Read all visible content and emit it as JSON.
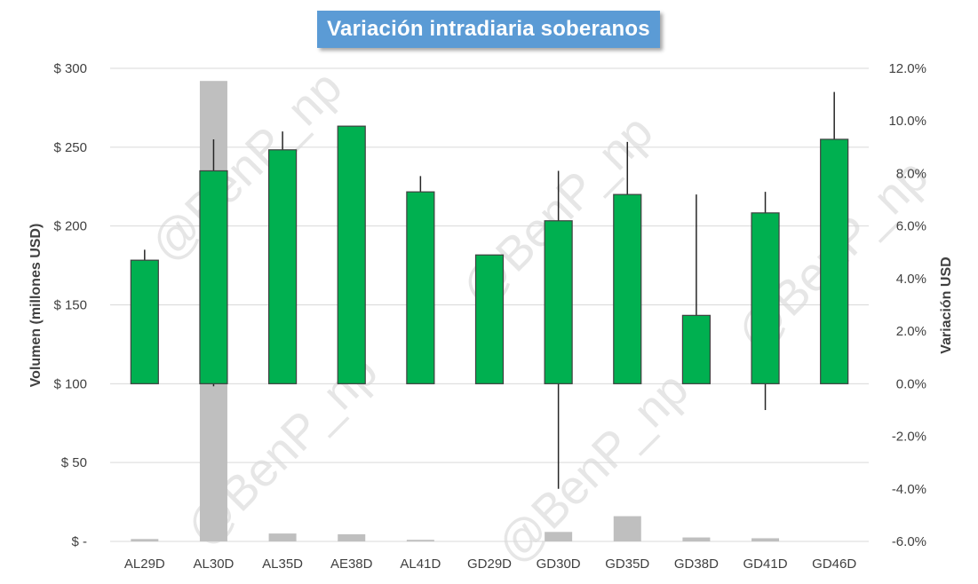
{
  "title": "Variación intradiaria soberanos",
  "colors": {
    "title_bg": "#5b9bd5",
    "volume_bar": "#bfbfbf",
    "candle_fill": "#00b050",
    "candle_border": "#404040",
    "wick": "#262626",
    "grid": "#d9d9d9",
    "watermark": "#e6e6e6"
  },
  "watermark": "@BenP_np",
  "chart_data": {
    "type": "bar",
    "subtype": "volume bars with floating candlestick variation bars (dual axis)",
    "categories": [
      "AL29D",
      "AL30D",
      "AL35D",
      "AE38D",
      "AL41D",
      "GD29D",
      "GD30D",
      "GD35D",
      "GD38D",
      "GD41D",
      "GD46D"
    ],
    "left_axis": {
      "label": "Volumen (millones USD)",
      "ylim": [
        0,
        300
      ],
      "ticks": [
        0,
        50,
        100,
        150,
        200,
        250,
        300
      ],
      "tick_labels": [
        "$ -",
        "$ 50",
        "$ 100",
        "$ 150",
        "$ 200",
        "$ 250",
        "$ 300"
      ]
    },
    "right_axis": {
      "label": "Variación USD",
      "ylim": [
        -6,
        12
      ],
      "ticks": [
        -6,
        -4,
        -2,
        0,
        2,
        4,
        6,
        8,
        10,
        12
      ],
      "tick_labels": [
        "-6.0%",
        "-4.0%",
        "-2.0%",
        "0.0%",
        "2.0%",
        "4.0%",
        "6.0%",
        "8.0%",
        "10.0%",
        "12.0%"
      ]
    },
    "volume": [
      1.5,
      292,
      5,
      4.5,
      1,
      0,
      6,
      16,
      2.5,
      2,
      0
    ],
    "variation": {
      "open": [
        0,
        0,
        0,
        0,
        0,
        0,
        0,
        0,
        0,
        0,
        0
      ],
      "close": [
        4.7,
        8.1,
        8.9,
        9.8,
        7.3,
        4.9,
        6.2,
        7.2,
        2.6,
        6.5,
        9.3
      ],
      "high": [
        5.1,
        9.3,
        9.6,
        9.8,
        7.9,
        4.9,
        8.1,
        9.2,
        7.2,
        7.3,
        11.1
      ],
      "low": [
        0,
        -0.1,
        0,
        0,
        0,
        0,
        -4.0,
        0,
        0,
        -1.0,
        0
      ]
    },
    "grid": true,
    "legend": "none"
  }
}
